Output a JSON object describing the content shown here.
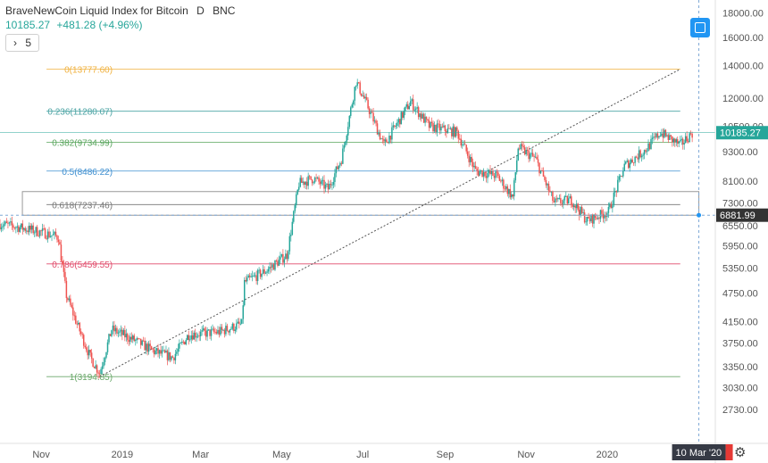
{
  "header": {
    "symbol": "BraveNewCoin Liquid Index for Bitcoin",
    "interval": "D",
    "exchange": "BNC",
    "last": "10185.27",
    "change": "+481.28 (+4.96%)"
  },
  "indicator_count": "5",
  "crosshair": {
    "price": "6881.99",
    "date": "10 Mar '20"
  },
  "last_price_label": "10185.27",
  "colors": {
    "up": "#26a69a",
    "down": "#ef5350",
    "accent": "#2196f3",
    "fib_0": "#f0b03c",
    "fib_0236": "#4aa3a3",
    "fib_0382": "#58a55c",
    "fib_05": "#3f8fd0",
    "fib_0618": "#777777",
    "fib_0786": "#e04b6b",
    "fib_1": "#6aa86a"
  },
  "icons": [
    "chevron-right-icon",
    "fit-screen-icon",
    "gear-icon"
  ],
  "chart_data": {
    "type": "candlestick",
    "scale": "log",
    "ylim": [
      2500,
      18500
    ],
    "xlim": [
      "2018-10-01",
      "2020-03-15"
    ],
    "grid": false,
    "y_ticks": [
      "18000.00",
      "16000.00",
      "14000.00",
      "12000.00",
      "10500.00",
      "9300.00",
      "8100.00",
      "7300.00",
      "6550.00",
      "5950.00",
      "5350.00",
      "4750.00",
      "4150.00",
      "3750.00",
      "3350.00",
      "3030.00",
      "2730.00"
    ],
    "x_ticks": [
      {
        "label": "Nov",
        "date": "2018-11-01"
      },
      {
        "label": "2019",
        "date": "2019-01-01"
      },
      {
        "label": "Mar",
        "date": "2019-03-01"
      },
      {
        "label": "May",
        "date": "2019-05-01"
      },
      {
        "label": "Jul",
        "date": "2019-07-01"
      },
      {
        "label": "Sep",
        "date": "2019-09-01"
      },
      {
        "label": "Nov",
        "date": "2019-11-01"
      },
      {
        "label": "2020",
        "date": "2020-01-01"
      },
      {
        "label": "Mar",
        "date": "2020-03-01"
      }
    ],
    "fib_levels": [
      {
        "label": "0(13777.60)",
        "value": 13777.6
      },
      {
        "label": "0.236(11280.07)",
        "value": 11280.07
      },
      {
        "label": "0.382(9734.99)",
        "value": 9734.99
      },
      {
        "label": "0.5(8486.22)",
        "value": 8486.22
      },
      {
        "label": "0.618(7237.46)",
        "value": 7237.46
      },
      {
        "label": "0.786(5459.55)",
        "value": 5459.55
      },
      {
        "label": "1(3194.85)",
        "value": 3194.85
      }
    ],
    "trendline": [
      {
        "date": "2018-12-15",
        "value": 3194.85
      },
      {
        "date": "2020-02-25",
        "value": 13777.6
      }
    ],
    "price_path": [
      {
        "date": "2018-10-01",
        "value": 6600
      },
      {
        "date": "2018-10-15",
        "value": 6500
      },
      {
        "date": "2018-11-01",
        "value": 6350
      },
      {
        "date": "2018-11-14",
        "value": 6200
      },
      {
        "date": "2018-11-20",
        "value": 4700
      },
      {
        "date": "2018-11-28",
        "value": 4100
      },
      {
        "date": "2018-12-08",
        "value": 3500
      },
      {
        "date": "2018-12-15",
        "value": 3250
      },
      {
        "date": "2018-12-24",
        "value": 4000
      },
      {
        "date": "2019-01-10",
        "value": 3800
      },
      {
        "date": "2019-01-25",
        "value": 3600
      },
      {
        "date": "2019-02-08",
        "value": 3500
      },
      {
        "date": "2019-02-20",
        "value": 3900
      },
      {
        "date": "2019-03-15",
        "value": 3950
      },
      {
        "date": "2019-04-01",
        "value": 4100
      },
      {
        "date": "2019-04-03",
        "value": 5000
      },
      {
        "date": "2019-04-20",
        "value": 5300
      },
      {
        "date": "2019-05-05",
        "value": 5700
      },
      {
        "date": "2019-05-14",
        "value": 8000
      },
      {
        "date": "2019-05-25",
        "value": 8200
      },
      {
        "date": "2019-06-05",
        "value": 7800
      },
      {
        "date": "2019-06-15",
        "value": 9000
      },
      {
        "date": "2019-06-26",
        "value": 13000
      },
      {
        "date": "2019-07-05",
        "value": 11500
      },
      {
        "date": "2019-07-17",
        "value": 9600
      },
      {
        "date": "2019-08-06",
        "value": 11800
      },
      {
        "date": "2019-08-20",
        "value": 10500
      },
      {
        "date": "2019-09-10",
        "value": 10200
      },
      {
        "date": "2019-09-24",
        "value": 8500
      },
      {
        "date": "2019-10-10",
        "value": 8300
      },
      {
        "date": "2019-10-22",
        "value": 7500
      },
      {
        "date": "2019-10-26",
        "value": 9500
      },
      {
        "date": "2019-11-08",
        "value": 9000
      },
      {
        "date": "2019-11-22",
        "value": 7300
      },
      {
        "date": "2019-12-05",
        "value": 7400
      },
      {
        "date": "2019-12-17",
        "value": 6700
      },
      {
        "date": "2020-01-02",
        "value": 7000
      },
      {
        "date": "2020-01-14",
        "value": 8700
      },
      {
        "date": "2020-01-30",
        "value": 9400
      },
      {
        "date": "2020-02-10",
        "value": 10200
      },
      {
        "date": "2020-02-25",
        "value": 9600
      },
      {
        "date": "2020-03-05",
        "value": 10185.27
      }
    ]
  }
}
